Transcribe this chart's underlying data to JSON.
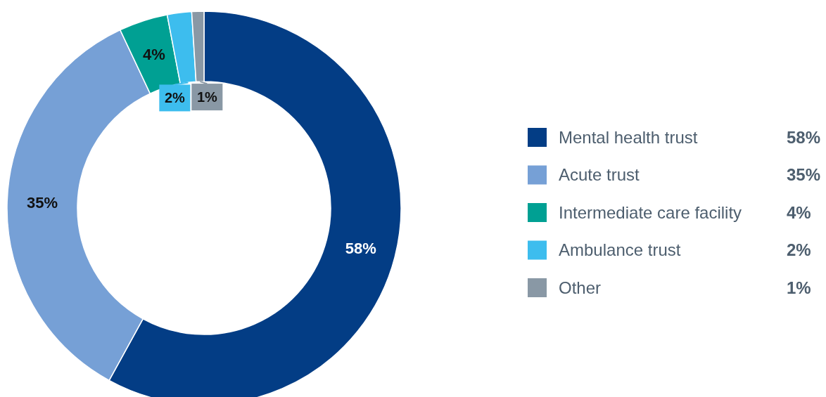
{
  "chart_data": {
    "type": "donut",
    "categories": [
      "Mental health trust",
      "Acute trust",
      "Intermediate care facility",
      "Ambulance trust",
      "Other"
    ],
    "values": [
      58,
      35,
      4,
      2,
      1
    ],
    "value_labels": [
      "58%",
      "35%",
      "4%",
      "2%",
      "1%"
    ],
    "colors": [
      "#033d85",
      "#76a0d6",
      "#00a093",
      "#3dbdee",
      "#8998a5"
    ],
    "legend": "right"
  }
}
